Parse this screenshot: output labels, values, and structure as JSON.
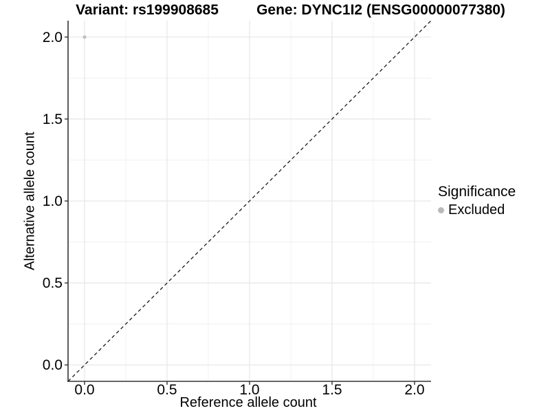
{
  "chart_data": {
    "type": "scatter",
    "title_left": "Variant: rs199908685",
    "title_right": "Gene: DYNC1I2 (ENSG00000077380)",
    "xlabel": "Reference allele count",
    "ylabel": "Alternative allele count",
    "xlim": [
      -0.1,
      2.1
    ],
    "ylim": [
      -0.1,
      2.1
    ],
    "xticks": [
      "0.0",
      "0.5",
      "1.0",
      "1.5",
      "2.0"
    ],
    "yticks": [
      "0.0",
      "0.5",
      "1.0",
      "1.5",
      "2.0"
    ],
    "xtick_values": [
      0,
      0.5,
      1,
      1.5,
      2
    ],
    "ytick_values": [
      0,
      0.5,
      1,
      1.5,
      2
    ],
    "minor_tick_values": [
      0.25,
      0.75,
      1.25,
      1.75
    ],
    "grid": "major+minor",
    "points": [
      {
        "x": 0,
        "y": 2,
        "series": "Excluded"
      }
    ],
    "identity_line": {
      "style": "dashed",
      "from": [
        -0.1,
        -0.1
      ],
      "to": [
        2.1,
        2.1
      ]
    },
    "legend": {
      "title": "Significance",
      "position": "right",
      "entries": [
        {
          "label": "Excluded",
          "color": "#b9b9b9",
          "marker": "circle"
        }
      ]
    },
    "colors": {
      "background": "#ffffff",
      "point": "#c0c0c0",
      "grid_major": "#e6e6e6",
      "grid_minor": "#f1f1f1",
      "axis_line": "#333333",
      "tick_mark": "#333333",
      "text": "#000000",
      "identity_line": "#1a1a1a"
    }
  }
}
